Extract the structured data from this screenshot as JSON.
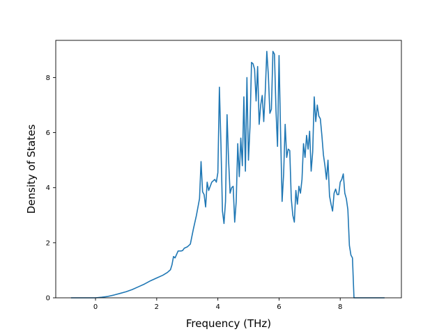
{
  "chart_data": {
    "type": "line",
    "title": "",
    "xlabel": "Frequency (THz)",
    "ylabel": "Density of States",
    "xlim": [
      -1.3,
      10.0
    ],
    "ylim": [
      0,
      9.35
    ],
    "xticks": [
      0,
      2,
      4,
      6,
      8
    ],
    "yticks": [
      0,
      2,
      4,
      6,
      8
    ],
    "grid": false,
    "series": [
      {
        "color": "#1f77b4",
        "x": [
          -0.8,
          -0.4,
          0.0,
          0.2,
          0.4,
          0.6,
          0.8,
          1.0,
          1.2,
          1.4,
          1.6,
          1.8,
          2.0,
          2.2,
          2.35,
          2.45,
          2.5,
          2.55,
          2.6,
          2.7,
          2.8,
          2.85,
          2.9,
          3.0,
          3.1,
          3.2,
          3.3,
          3.4,
          3.45,
          3.5,
          3.55,
          3.6,
          3.65,
          3.7,
          3.75,
          3.8,
          3.9,
          3.95,
          4.0,
          4.05,
          4.1,
          4.15,
          4.2,
          4.25,
          4.3,
          4.35,
          4.4,
          4.45,
          4.5,
          4.55,
          4.6,
          4.65,
          4.7,
          4.75,
          4.8,
          4.85,
          4.9,
          4.95,
          5.0,
          5.05,
          5.1,
          5.15,
          5.2,
          5.25,
          5.3,
          5.35,
          5.4,
          5.45,
          5.5,
          5.55,
          5.6,
          5.65,
          5.7,
          5.75,
          5.8,
          5.85,
          5.9,
          5.95,
          6.0,
          6.05,
          6.1,
          6.15,
          6.2,
          6.25,
          6.3,
          6.35,
          6.4,
          6.45,
          6.5,
          6.55,
          6.6,
          6.65,
          6.7,
          6.75,
          6.8,
          6.85,
          6.9,
          6.95,
          7.0,
          7.05,
          7.1,
          7.15,
          7.2,
          7.25,
          7.3,
          7.35,
          7.4,
          7.45,
          7.5,
          7.55,
          7.6,
          7.65,
          7.7,
          7.75,
          7.8,
          7.85,
          7.9,
          7.95,
          8.0,
          8.05,
          8.1,
          8.15,
          8.2,
          8.25,
          8.3,
          8.35,
          8.4,
          8.45,
          8.5,
          8.55,
          8.6,
          8.65,
          8.7,
          9.0,
          9.45
        ],
        "y": [
          0.0,
          0.0,
          0.0,
          0.02,
          0.05,
          0.1,
          0.16,
          0.22,
          0.3,
          0.4,
          0.5,
          0.62,
          0.72,
          0.82,
          0.92,
          1.02,
          1.2,
          1.5,
          1.45,
          1.7,
          1.7,
          1.72,
          1.8,
          1.85,
          1.95,
          2.5,
          3.0,
          3.6,
          4.95,
          3.85,
          3.75,
          3.3,
          4.2,
          3.9,
          4.05,
          4.2,
          4.3,
          4.2,
          4.55,
          7.65,
          5.6,
          3.15,
          2.7,
          3.5,
          6.65,
          5.0,
          3.8,
          4.0,
          4.05,
          2.75,
          3.5,
          5.6,
          4.4,
          5.8,
          4.8,
          7.3,
          4.6,
          8.0,
          5.0,
          6.2,
          8.55,
          8.5,
          8.3,
          7.15,
          8.4,
          6.3,
          7.0,
          7.35,
          6.4,
          7.5,
          8.95,
          8.1,
          6.7,
          6.85,
          8.95,
          8.85,
          6.8,
          5.5,
          8.8,
          6.0,
          3.5,
          4.5,
          6.3,
          5.1,
          5.4,
          5.35,
          3.6,
          3.0,
          2.75,
          3.9,
          3.4,
          4.05,
          3.8,
          4.3,
          5.6,
          5.1,
          5.9,
          5.4,
          6.05,
          4.6,
          5.3,
          7.3,
          6.4,
          7.0,
          6.6,
          6.5,
          5.9,
          5.2,
          4.8,
          4.3,
          5.0,
          3.7,
          3.4,
          3.15,
          3.8,
          3.95,
          3.75,
          3.75,
          4.2,
          4.3,
          4.5,
          3.8,
          3.6,
          3.2,
          1.9,
          1.55,
          1.45,
          0.0,
          0.0,
          0.0,
          0.0,
          0.0,
          0.0,
          0.0,
          0.0
        ]
      }
    ]
  }
}
